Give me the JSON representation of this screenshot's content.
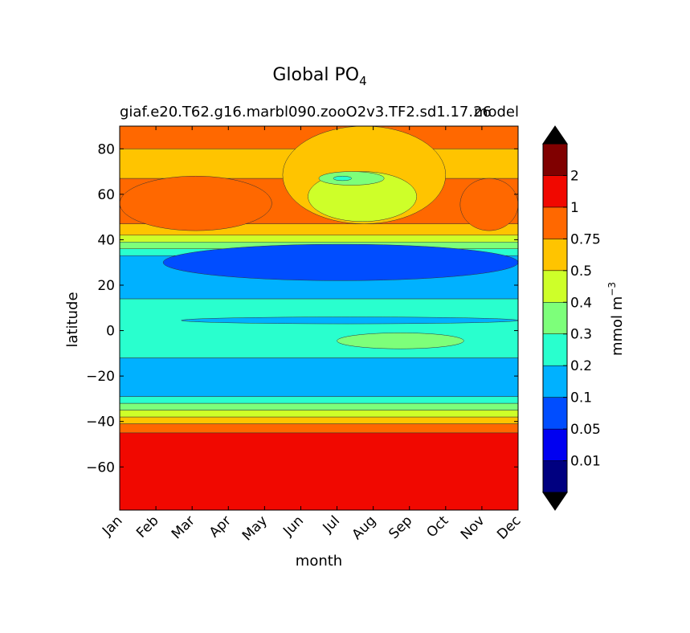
{
  "chart_data": {
    "type": "contourf",
    "title": "Global PO",
    "title_subscript": "4",
    "subtitle_left": "giaf.e20.T62.g16.marbl090.zooO2v3.TF2.sd1.17.26",
    "subtitle_right": "model",
    "xlabel": "month",
    "ylabel": "latitude",
    "x_categories": [
      "Jan",
      "Feb",
      "Mar",
      "Apr",
      "May",
      "Jun",
      "Jul",
      "Aug",
      "Sep",
      "Oct",
      "Nov",
      "Dec"
    ],
    "x_range": [
      1,
      12
    ],
    "y_range": [
      -79,
      90
    ],
    "y_ticks": [
      80,
      60,
      40,
      20,
      0,
      -20,
      -40,
      -60
    ],
    "y_tick_labels": [
      "80",
      "60",
      "40",
      "20",
      "0",
      "−20",
      "−40",
      "−60"
    ],
    "colorbar": {
      "label": "mmol m",
      "label_superscript": "−3",
      "levels": [
        0.01,
        0.05,
        0.1,
        0.2,
        0.3,
        0.4,
        0.5,
        0.75,
        1,
        2
      ],
      "tick_labels": [
        "0.01",
        "0.05",
        "0.1",
        "0.2",
        "0.3",
        "0.4",
        "0.5",
        "0.75",
        "1",
        "2"
      ],
      "colors": [
        "#000080",
        "#0000f1",
        "#004dff",
        "#00b1ff",
        "#29ffce",
        "#7dff7a",
        "#ceff29",
        "#ffc400",
        "#ff6800",
        "#f10800",
        "#800000"
      ],
      "extend": "both",
      "under_color": "#000000",
      "over_color": "#000000"
    },
    "field_bands": [
      {
        "level_bin": 9,
        "lat_from": -79,
        "lat_to": -45
      },
      {
        "level_bin": 8,
        "lat_from": -45,
        "lat_to": -41
      },
      {
        "level_bin": 7,
        "lat_from": -41,
        "lat_to": -38
      },
      {
        "level_bin": 6,
        "lat_from": -38,
        "lat_to": -35
      },
      {
        "level_bin": 5,
        "lat_from": -35,
        "lat_to": -32
      },
      {
        "level_bin": 4,
        "lat_from": -32,
        "lat_to": -29
      },
      {
        "level_bin": 3,
        "lat_from": -29,
        "lat_to": -12
      },
      {
        "level_bin": 4,
        "lat_from": -12,
        "lat_to": 14
      },
      {
        "level_bin": 3,
        "lat_from": 14,
        "lat_to": 33
      },
      {
        "level_bin": 4,
        "lat_from": 33,
        "lat_to": 36
      },
      {
        "level_bin": 5,
        "lat_from": 36,
        "lat_to": 39
      },
      {
        "level_bin": 6,
        "lat_from": 39,
        "lat_to": 42
      },
      {
        "level_bin": 7,
        "lat_from": 42,
        "lat_to": 47
      },
      {
        "level_bin": 8,
        "lat_from": 47,
        "lat_to": 67
      },
      {
        "level_bin": 7,
        "lat_from": 67,
        "lat_to": 80
      },
      {
        "level_bin": 8,
        "lat_from": 80,
        "lat_to": 90
      }
    ],
    "field_features": [
      {
        "name": "north-summer-low",
        "level_bin": 7,
        "x": [
          5.5,
          10.0
        ],
        "lat": [
          47,
          90
        ]
      },
      {
        "name": "north-summer-greenish",
        "level_bin": 6,
        "x": [
          6.2,
          9.2
        ],
        "lat": [
          48,
          70
        ]
      },
      {
        "name": "arctic-green-patch",
        "level_bin": 5,
        "x": [
          6.5,
          8.3
        ],
        "lat": [
          64,
          70
        ]
      },
      {
        "name": "arctic-teal-spot",
        "level_bin": 4,
        "x": [
          6.9,
          7.4
        ],
        "lat": [
          66,
          68
        ]
      },
      {
        "name": "north-high-phosphate",
        "level_bin": 9,
        "x": [
          1.0,
          3.9
        ],
        "lat": [
          50,
          60
        ]
      },
      {
        "name": "north-orange-early",
        "level_bin": 8,
        "x": [
          1.0,
          5.2
        ],
        "lat": [
          44,
          68
        ]
      },
      {
        "name": "north-orange-late",
        "level_bin": 8,
        "x": [
          10.4,
          12.0
        ],
        "lat": [
          44,
          67
        ]
      },
      {
        "name": "subtropical-north-low",
        "level_bin": 2,
        "x": [
          2.2,
          12.0
        ],
        "lat": [
          22,
          38
        ]
      },
      {
        "name": "equatorial-band",
        "level_bin": 3,
        "x": [
          2.7,
          12.0
        ],
        "lat": [
          3,
          6
        ]
      },
      {
        "name": "equatorial-green",
        "level_bin": 5,
        "x": [
          7.0,
          10.5
        ],
        "lat": [
          -8,
          -1
        ]
      }
    ]
  }
}
